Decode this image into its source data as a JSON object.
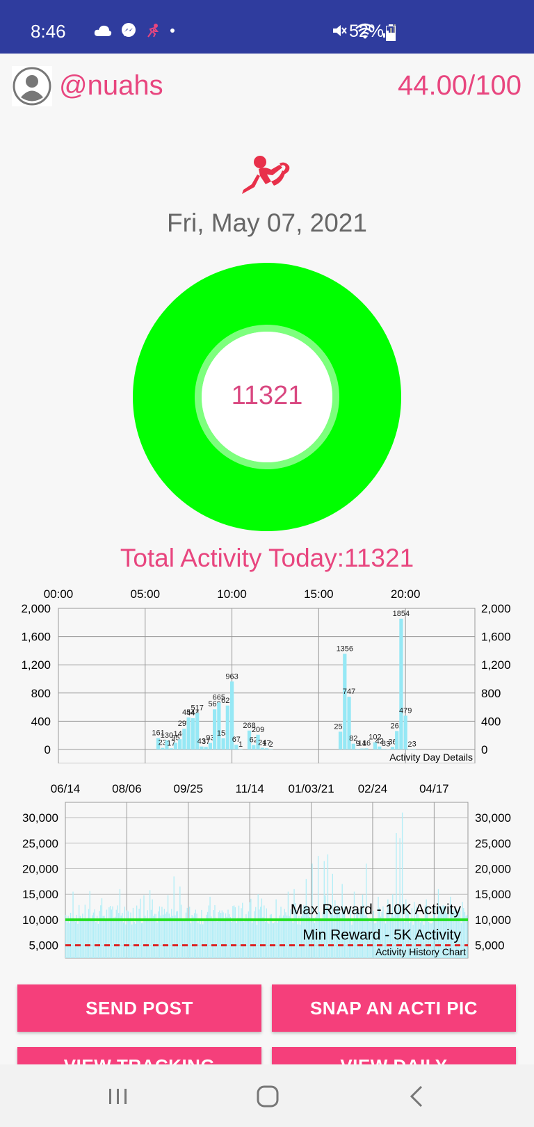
{
  "status_bar": {
    "time": "8:46",
    "battery_percent": "52%",
    "icons_left": [
      "cloud-icon",
      "messenger-icon",
      "runner-small-icon",
      "dot-icon"
    ],
    "icons_right": [
      "mute-icon",
      "wifi-icon",
      "signal-icon",
      "battery-icon"
    ]
  },
  "header": {
    "username": "@nuahs",
    "score": "44.00/100"
  },
  "today": {
    "date": "Fri, May 07, 2021",
    "steps": "11321",
    "total_label": "Total Activity Today:11321",
    "ring_color": "#00ff00",
    "inner_ring_color": "#7dff7d"
  },
  "chart_data": [
    {
      "type": "bar",
      "annotation": "Activity Day Details",
      "x_ticks": [
        "00:00",
        "05:00",
        "10:00",
        "15:00",
        "20:00"
      ],
      "x_range_hours": [
        0,
        24
      ],
      "y_ticks": [
        "2,000",
        "1,600",
        "1,200",
        "800",
        "400",
        "0"
      ],
      "ylim": [
        0,
        2000
      ],
      "bar_color": "#96e8f5",
      "x": [
        5.75,
        6.0,
        6.25,
        6.5,
        6.75,
        7.0,
        7.25,
        7.5,
        7.75,
        8.0,
        8.25,
        8.5,
        8.75,
        9.0,
        9.25,
        9.5,
        9.75,
        10.0,
        10.25,
        10.5,
        11.0,
        11.25,
        11.5,
        11.75,
        12.0,
        12.25,
        16.25,
        16.5,
        16.75,
        17.0,
        17.25,
        17.5,
        17.75,
        18.25,
        18.5,
        18.75,
        19.0,
        19.25,
        19.5,
        19.75,
        20.0,
        20.25,
        20.5
      ],
      "values": [
        161,
        23,
        130,
        17,
        95,
        146,
        295,
        454,
        444,
        517,
        43,
        37,
        93,
        569,
        665,
        158,
        623,
        963,
        67,
        1,
        268,
        62,
        209,
        24,
        17,
        2,
        252,
        1356,
        747,
        82,
        9,
        14,
        16,
        102,
        42,
        8,
        3,
        36,
        262,
        1854,
        479,
        2,
        3
      ],
      "labels": [
        "161",
        "23",
        "130",
        "17",
        "95",
        "146",
        "295",
        "454",
        "444",
        "517",
        "43",
        "37",
        "93",
        "569",
        "665",
        "158",
        "623",
        "963",
        "67",
        "1",
        "268",
        "62",
        "209",
        "24",
        "17",
        "2",
        "252",
        "1356",
        "747",
        "82",
        "9",
        "14",
        "16",
        "102",
        "42",
        "8",
        "3",
        "36",
        "262",
        "1854",
        "479",
        "2",
        "3"
      ]
    },
    {
      "type": "bar",
      "annotation": "Activity History Chart",
      "x_ticks": [
        "06/14",
        "08/06",
        "09/25",
        "11/14",
        "01/03/21",
        "02/24",
        "04/17"
      ],
      "y_ticks": [
        "30,000",
        "25,000",
        "20,000",
        "15,000",
        "10,000",
        "5,000"
      ],
      "ylim": [
        2500,
        33000
      ],
      "bar_color": "#b3eef7",
      "reference_lines": [
        {
          "label": "Max Reward - 10K Activity",
          "value": 10000,
          "color": "#22dd22",
          "style": "solid"
        },
        {
          "label": "Min Reward - 5K Activity",
          "value": 5000,
          "color": "#dd2222",
          "style": "dashed"
        }
      ],
      "num_days": 335,
      "highlights": [
        [
          6,
          15500
        ],
        [
          30,
          14200
        ],
        [
          45,
          16000
        ],
        [
          70,
          15800
        ],
        [
          85,
          14800
        ],
        [
          90,
          18500
        ],
        [
          95,
          16500
        ],
        [
          120,
          14500
        ],
        [
          140,
          12800
        ],
        [
          160,
          15000
        ],
        [
          175,
          14000
        ],
        [
          185,
          15500
        ],
        [
          190,
          16000
        ],
        [
          200,
          18000
        ],
        [
          205,
          21000
        ],
        [
          210,
          22500
        ],
        [
          215,
          21500
        ],
        [
          218,
          22800
        ],
        [
          222,
          19000
        ],
        [
          230,
          17000
        ],
        [
          240,
          15500
        ],
        [
          250,
          21000
        ],
        [
          260,
          14500
        ],
        [
          268,
          14000
        ],
        [
          272,
          15000
        ],
        [
          275,
          27000
        ],
        [
          278,
          26000
        ],
        [
          280,
          31000
        ],
        [
          283,
          14000
        ],
        [
          290,
          13500
        ],
        [
          300,
          14000
        ],
        [
          310,
          16000
        ],
        [
          320,
          14500
        ],
        [
          330,
          13500
        ]
      ]
    }
  ],
  "buttons": {
    "send_post": "SEND POST",
    "snap_pic": "SNAP AN ACTI PIC",
    "view_tracking": "VIEW TRACKING",
    "view_daily": "VIEW DAILY"
  },
  "nav": [
    "recents-icon",
    "home-icon",
    "back-icon"
  ]
}
